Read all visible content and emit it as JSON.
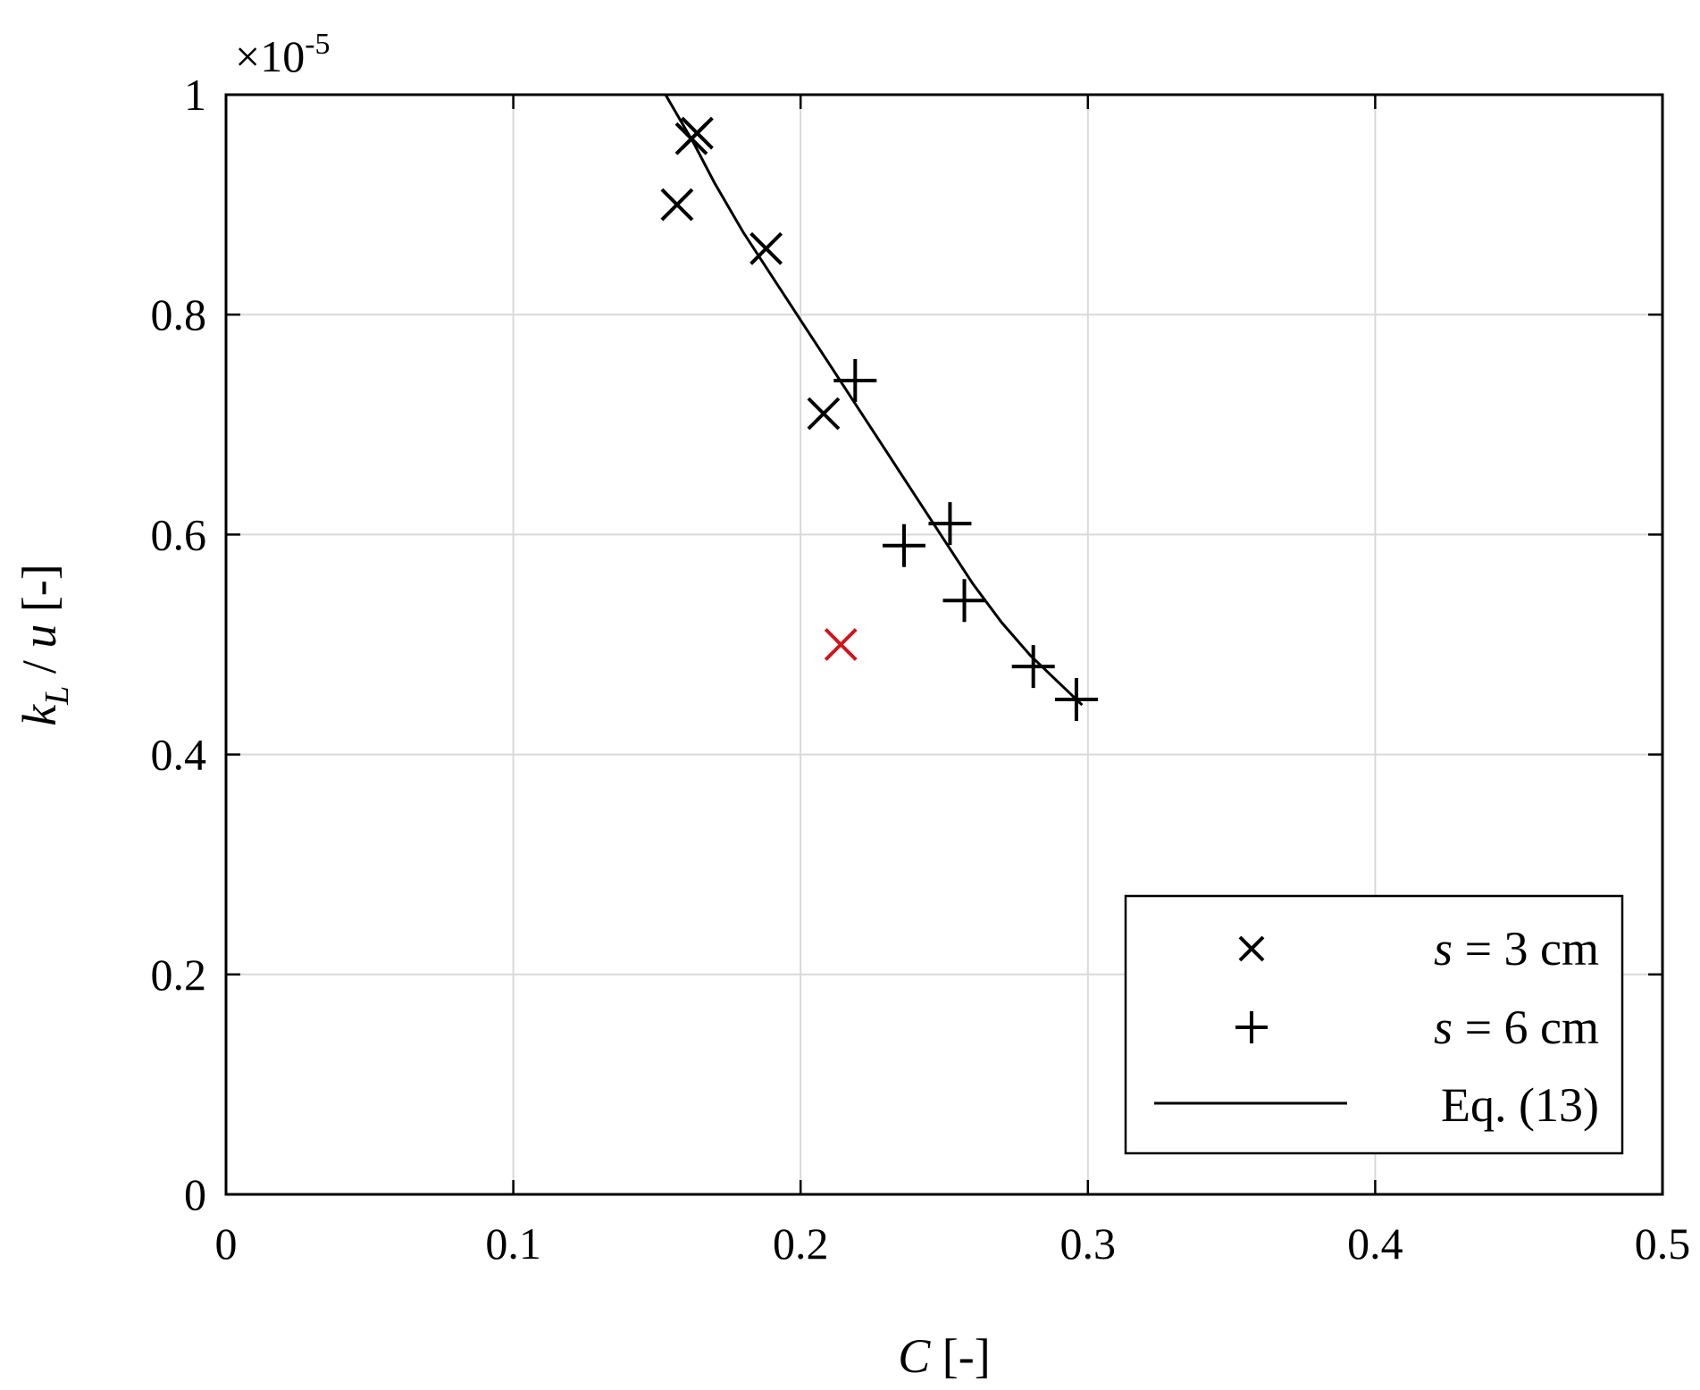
{
  "chart_data": {
    "type": "scatter",
    "x": {
      "label_italic": "C",
      "label_unit": " [-]",
      "lim": [
        0,
        0.5
      ],
      "ticks": [
        0,
        0.1,
        0.2,
        0.3,
        0.4,
        0.5
      ],
      "tick_labels": [
        "0",
        "0.1",
        "0.2",
        "0.3",
        "0.4",
        "0.5"
      ]
    },
    "y": {
      "label_k": "k",
      "label_sub": "L",
      "label_mid": " / ",
      "label_u": "u",
      "label_unit": " [-]",
      "lim": [
        0,
        1e-05
      ],
      "ticks": [
        0,
        2e-06,
        4e-06,
        6e-06,
        8e-06,
        1e-05
      ],
      "tick_labels": [
        "0",
        "0.2",
        "0.4",
        "0.6",
        "0.8",
        "1"
      ],
      "exponent_prefix": "×10",
      "exponent_power": "-5"
    },
    "grid": true,
    "legend_position": "bottom-right",
    "series": [
      {
        "name_var": "s",
        "name_rest": " = 3 cm",
        "marker": "x",
        "color": "#000000",
        "points": [
          [
            0.157,
            9e-06
          ],
          [
            0.162,
            9.6e-06
          ],
          [
            0.164,
            9.65e-06
          ],
          [
            0.188,
            8.6e-06
          ],
          [
            0.208,
            7.1e-06
          ]
        ]
      },
      {
        "name_var": "s",
        "name_rest": " = 6 cm",
        "marker": "+",
        "color": "#000000",
        "points": [
          [
            0.219,
            7.4e-06
          ],
          [
            0.236,
            5.9e-06
          ],
          [
            0.252,
            6.1e-06
          ],
          [
            0.257,
            5.4e-06
          ],
          [
            0.281,
            4.8e-06
          ],
          [
            0.296,
            4.5e-06
          ]
        ]
      },
      {
        "name_var": "",
        "name_rest": "",
        "marker": "x",
        "color": "#d0141c",
        "points": [
          [
            0.214,
            5e-06
          ]
        ]
      }
    ],
    "fit": {
      "name": "Eq. (13)",
      "color": "#000000",
      "points": [
        [
          0.153,
          1e-05
        ],
        [
          0.163,
          9.55e-06
        ],
        [
          0.17,
          9.2e-06
        ],
        [
          0.18,
          8.75e-06
        ],
        [
          0.19,
          8.35e-06
        ],
        [
          0.2,
          7.95e-06
        ],
        [
          0.21,
          7.55e-06
        ],
        [
          0.22,
          7.15e-06
        ],
        [
          0.23,
          6.75e-06
        ],
        [
          0.24,
          6.35e-06
        ],
        [
          0.25,
          5.95e-06
        ],
        [
          0.26,
          5.55e-06
        ],
        [
          0.27,
          5.2e-06
        ],
        [
          0.28,
          4.9e-06
        ],
        [
          0.29,
          4.65e-06
        ],
        [
          0.298,
          4.45e-06
        ]
      ]
    }
  }
}
